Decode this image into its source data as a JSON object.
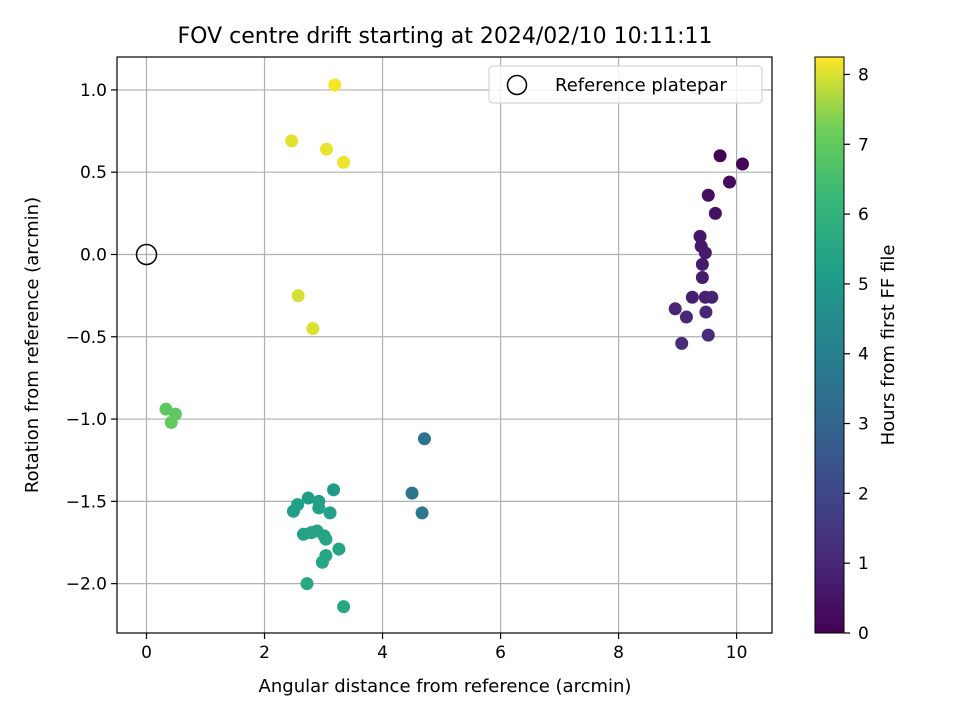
{
  "chart_data": {
    "type": "scatter",
    "title": "FOV centre drift starting at 2024/02/10 10:11:11",
    "xlabel": "Angular distance from reference (arcmin)",
    "ylabel": "Rotation from reference (arcmin)",
    "xlim": [
      -0.5,
      10.6
    ],
    "ylim": [
      -2.3,
      1.2
    ],
    "xticks": [
      0,
      2,
      4,
      6,
      8,
      10
    ],
    "xtick_labels": [
      "0",
      "2",
      "4",
      "6",
      "8",
      "10"
    ],
    "yticks": [
      1.0,
      0.5,
      0.0,
      -0.5,
      -1.0,
      -1.5,
      -2.0
    ],
    "ytick_labels": [
      "1.0",
      "0.5",
      "0.0",
      "−0.5",
      "−1.0",
      "−1.5",
      "−2.0"
    ],
    "grid": true,
    "legend": {
      "placement": "top-right",
      "entries": [
        "Reference platepar"
      ]
    },
    "reference_point": {
      "x": 0,
      "y": 0
    },
    "colorbar": {
      "label": "Hours from first FF file",
      "range": [
        0,
        8.25
      ],
      "ticks": [
        0,
        1,
        2,
        3,
        4,
        5,
        6,
        7,
        8
      ],
      "tick_labels": [
        "0",
        "1",
        "2",
        "3",
        "4",
        "5",
        "6",
        "7",
        "8"
      ],
      "colormap": "viridis"
    },
    "points": [
      {
        "x": 9.72,
        "y": 0.6,
        "c": 0.1
      },
      {
        "x": 10.1,
        "y": 0.55,
        "c": 0.15
      },
      {
        "x": 9.88,
        "y": 0.44,
        "c": 0.25
      },
      {
        "x": 9.52,
        "y": 0.36,
        "c": 0.35
      },
      {
        "x": 9.64,
        "y": 0.25,
        "c": 0.45
      },
      {
        "x": 9.38,
        "y": 0.11,
        "c": 0.55
      },
      {
        "x": 9.4,
        "y": 0.05,
        "c": 0.6
      },
      {
        "x": 9.47,
        "y": 0.01,
        "c": 0.65
      },
      {
        "x": 9.42,
        "y": -0.06,
        "c": 0.7
      },
      {
        "x": 9.42,
        "y": -0.14,
        "c": 0.75
      },
      {
        "x": 9.25,
        "y": -0.26,
        "c": 0.8
      },
      {
        "x": 9.47,
        "y": -0.26,
        "c": 0.85
      },
      {
        "x": 9.58,
        "y": -0.26,
        "c": 0.9
      },
      {
        "x": 8.96,
        "y": -0.33,
        "c": 0.95
      },
      {
        "x": 9.48,
        "y": -0.35,
        "c": 1.0
      },
      {
        "x": 9.15,
        "y": -0.38,
        "c": 1.05
      },
      {
        "x": 9.52,
        "y": -0.49,
        "c": 1.1
      },
      {
        "x": 9.07,
        "y": -0.54,
        "c": 1.15
      },
      {
        "x": 4.71,
        "y": -1.12,
        "c": 3.5
      },
      {
        "x": 4.5,
        "y": -1.45,
        "c": 3.6
      },
      {
        "x": 4.67,
        "y": -1.57,
        "c": 3.7
      },
      {
        "x": 3.17,
        "y": -1.43,
        "c": 5.1
      },
      {
        "x": 2.74,
        "y": -1.48,
        "c": 5.2
      },
      {
        "x": 2.92,
        "y": -1.5,
        "c": 5.2
      },
      {
        "x": 2.56,
        "y": -1.52,
        "c": 5.25
      },
      {
        "x": 2.49,
        "y": -1.56,
        "c": 5.25
      },
      {
        "x": 2.92,
        "y": -1.54,
        "c": 5.3
      },
      {
        "x": 3.11,
        "y": -1.57,
        "c": 5.3
      },
      {
        "x": 2.66,
        "y": -1.7,
        "c": 5.35
      },
      {
        "x": 2.79,
        "y": -1.69,
        "c": 5.35
      },
      {
        "x": 2.89,
        "y": -1.68,
        "c": 5.4
      },
      {
        "x": 3.01,
        "y": -1.71,
        "c": 5.4
      },
      {
        "x": 3.04,
        "y": -1.73,
        "c": 5.45
      },
      {
        "x": 3.26,
        "y": -1.79,
        "c": 5.45
      },
      {
        "x": 3.04,
        "y": -1.83,
        "c": 5.5
      },
      {
        "x": 2.98,
        "y": -1.87,
        "c": 5.5
      },
      {
        "x": 2.72,
        "y": -2.0,
        "c": 5.55
      },
      {
        "x": 3.34,
        "y": -2.14,
        "c": 5.55
      },
      {
        "x": 0.33,
        "y": -0.94,
        "c": 6.9
      },
      {
        "x": 0.49,
        "y": -0.97,
        "c": 6.95
      },
      {
        "x": 0.42,
        "y": -1.02,
        "c": 7.0
      },
      {
        "x": 2.57,
        "y": -0.25,
        "c": 7.95
      },
      {
        "x": 2.82,
        "y": -0.45,
        "c": 8.0
      },
      {
        "x": 2.46,
        "y": 0.69,
        "c": 8.05
      },
      {
        "x": 3.05,
        "y": 0.64,
        "c": 8.1
      },
      {
        "x": 3.34,
        "y": 0.56,
        "c": 8.15
      },
      {
        "x": 3.19,
        "y": 1.03,
        "c": 8.2
      }
    ]
  }
}
